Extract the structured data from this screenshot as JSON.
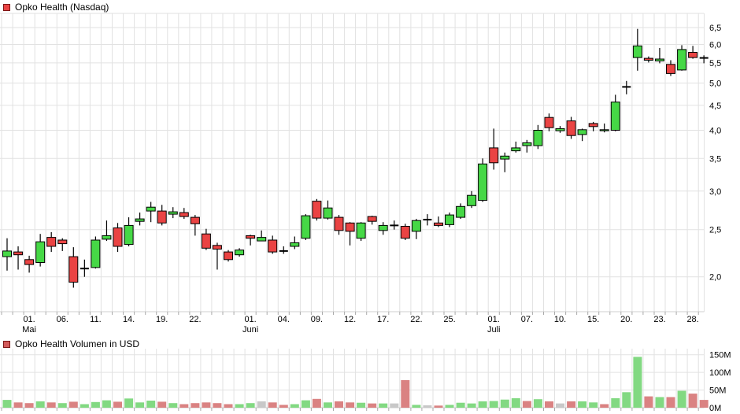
{
  "header": {
    "title": "Opko Health (Nasdaq)"
  },
  "volume_header": {
    "title": "Opko Health Volumen in USD"
  },
  "colors": {
    "candle_up": "#46D846",
    "candle_down": "#EA4343",
    "candle_outline": "#000000",
    "doji": "#000000",
    "volume_up": "#82D982",
    "volume_down": "#DA8282",
    "volume_neutral": "#C8C8C8",
    "grid": "#E2E2E2",
    "axis_line": "#CFCFCF",
    "tick": "#AAAAAA",
    "legend_main_square": "#EA4343",
    "legend_volume_square": "#D25A5A",
    "background": "#FFFFFF"
  },
  "chart_data": {
    "type": "candlestick",
    "title": "Opko Health (Nasdaq)",
    "subtitle_volume": "Opko Health Volumen in USD",
    "y_scale": "logarithmic",
    "grid": true,
    "legend_position": "top-left",
    "price_axis": {
      "side": "right",
      "labels": [
        "6,5",
        "6,0",
        "5,5",
        "5,0",
        "4,5",
        "4,0",
        "3,5",
        "3,0",
        "2,5",
        "2,0"
      ],
      "values": [
        6.5,
        6.0,
        5.5,
        5.0,
        4.5,
        4.0,
        3.5,
        3.0,
        2.5,
        2.0
      ],
      "min_visible": 1.9,
      "max_visible": 6.5
    },
    "volume_axis": {
      "side": "right",
      "labels": [
        "150M",
        "100M",
        "50M",
        "0M"
      ],
      "values": [
        150,
        100,
        50,
        0
      ],
      "unit": "USD"
    },
    "x_axis": {
      "months": [
        "Mai",
        "Juni",
        "Juli"
      ],
      "ticks": [
        {
          "label": "01.",
          "month": "Mai",
          "candle_index": 2
        },
        {
          "label": "06.",
          "month": "",
          "candle_index": 5
        },
        {
          "label": "11.",
          "month": "",
          "candle_index": 8
        },
        {
          "label": "14.",
          "month": "",
          "candle_index": 11
        },
        {
          "label": "19.",
          "month": "",
          "candle_index": 14
        },
        {
          "label": "22.",
          "month": "",
          "candle_index": 17
        },
        {
          "label": "01.",
          "month": "Juni",
          "candle_index": 22
        },
        {
          "label": "04.",
          "month": "",
          "candle_index": 25
        },
        {
          "label": "09.",
          "month": "",
          "candle_index": 28
        },
        {
          "label": "12.",
          "month": "",
          "candle_index": 31
        },
        {
          "label": "17.",
          "month": "",
          "candle_index": 34
        },
        {
          "label": "22.",
          "month": "",
          "candle_index": 37
        },
        {
          "label": "25.",
          "month": "",
          "candle_index": 40
        },
        {
          "label": "01.",
          "month": "Juli",
          "candle_index": 44
        },
        {
          "label": "07.",
          "month": "",
          "candle_index": 47
        },
        {
          "label": "10.",
          "month": "",
          "candle_index": 50
        },
        {
          "label": "15.",
          "month": "",
          "candle_index": 53
        },
        {
          "label": "20.",
          "month": "",
          "candle_index": 56
        },
        {
          "label": "23.",
          "month": "",
          "candle_index": 59
        },
        {
          "label": "28.",
          "month": "",
          "candle_index": 62
        }
      ]
    },
    "candle_fields": [
      "date",
      "open",
      "high",
      "low",
      "close",
      "volume_musd",
      "volume_color"
    ],
    "candles": [
      [
        "29.04.",
        2.2,
        2.4,
        2.06,
        2.26,
        22,
        "up"
      ],
      [
        "30.04.",
        2.25,
        2.31,
        2.07,
        2.22,
        15,
        "down"
      ],
      [
        "01.05.",
        2.17,
        2.21,
        2.04,
        2.12,
        13,
        "down"
      ],
      [
        "04.05.",
        2.14,
        2.45,
        2.1,
        2.36,
        18,
        "up"
      ],
      [
        "05.05.",
        2.41,
        2.47,
        2.25,
        2.31,
        15,
        "down"
      ],
      [
        "06.05.",
        2.38,
        2.4,
        2.26,
        2.34,
        13,
        "up"
      ],
      [
        "07.05.",
        2.2,
        2.3,
        1.9,
        1.95,
        17,
        "down"
      ],
      [
        "08.05.",
        2.08,
        2.17,
        2.0,
        2.09,
        10,
        "up"
      ],
      [
        "11.05.",
        2.09,
        2.42,
        2.08,
        2.38,
        16,
        "up"
      ],
      [
        "12.05.",
        2.39,
        2.61,
        2.37,
        2.43,
        21,
        "up"
      ],
      [
        "13.05.",
        2.52,
        2.58,
        2.25,
        2.31,
        17,
        "down"
      ],
      [
        "14.05.",
        2.33,
        2.65,
        2.31,
        2.55,
        26,
        "up"
      ],
      [
        "15.05.",
        2.6,
        2.71,
        2.55,
        2.63,
        15,
        "up"
      ],
      [
        "18.05.",
        2.73,
        2.85,
        2.59,
        2.78,
        20,
        "up"
      ],
      [
        "19.05.",
        2.73,
        2.81,
        2.55,
        2.58,
        17,
        "down"
      ],
      [
        "20.05.",
        2.69,
        2.78,
        2.64,
        2.72,
        13,
        "up"
      ],
      [
        "21.05.",
        2.71,
        2.77,
        2.63,
        2.66,
        10,
        "down"
      ],
      [
        "22.05.",
        2.65,
        2.68,
        2.43,
        2.57,
        13,
        "down"
      ],
      [
        "26.05.",
        2.45,
        2.51,
        2.27,
        2.29,
        15,
        "down"
      ],
      [
        "27.05.",
        2.32,
        2.35,
        2.07,
        2.28,
        13,
        "down"
      ],
      [
        "28.05.",
        2.25,
        2.27,
        2.15,
        2.17,
        10,
        "down"
      ],
      [
        "29.05.",
        2.22,
        2.29,
        2.2,
        2.27,
        10,
        "up"
      ],
      [
        "01.06.",
        2.43,
        2.44,
        2.32,
        2.4,
        13,
        "up"
      ],
      [
        "02.06.",
        2.37,
        2.49,
        2.37,
        2.41,
        18,
        "neutral"
      ],
      [
        "03.06.",
        2.38,
        2.43,
        2.23,
        2.25,
        15,
        "down"
      ],
      [
        "04.06.",
        2.26,
        2.31,
        2.23,
        2.26,
        8,
        "down"
      ],
      [
        "05.06.",
        2.31,
        2.42,
        2.28,
        2.35,
        10,
        "up"
      ],
      [
        "08.06.",
        2.4,
        2.69,
        2.38,
        2.67,
        21,
        "up"
      ],
      [
        "09.06.",
        2.86,
        2.89,
        2.61,
        2.64,
        25,
        "down"
      ],
      [
        "10.06.",
        2.64,
        2.87,
        2.62,
        2.77,
        15,
        "up"
      ],
      [
        "11.06.",
        2.65,
        2.68,
        2.44,
        2.49,
        18,
        "down"
      ],
      [
        "12.06.",
        2.58,
        2.59,
        2.32,
        2.48,
        15,
        "down"
      ],
      [
        "15.06.",
        2.4,
        2.59,
        2.37,
        2.58,
        14,
        "up"
      ],
      [
        "16.06.",
        2.66,
        2.67,
        2.56,
        2.6,
        12,
        "down"
      ],
      [
        "17.06.",
        2.49,
        2.59,
        2.44,
        2.55,
        12,
        "up"
      ],
      [
        "18.06.",
        2.55,
        2.61,
        2.5,
        2.54,
        12,
        "neutral"
      ],
      [
        "19.06.",
        2.54,
        2.57,
        2.38,
        2.4,
        78,
        "down"
      ],
      [
        "22.06.",
        2.48,
        2.63,
        2.39,
        2.61,
        8,
        "up"
      ],
      [
        "23.06.",
        2.62,
        2.69,
        2.55,
        2.62,
        7,
        "neutral"
      ],
      [
        "24.06.",
        2.58,
        2.66,
        2.53,
        2.55,
        6,
        "down"
      ],
      [
        "25.06.",
        2.56,
        2.71,
        2.53,
        2.68,
        8,
        "up"
      ],
      [
        "26.06.",
        2.65,
        2.83,
        2.63,
        2.79,
        14,
        "up"
      ],
      [
        "29.06.",
        2.8,
        3.0,
        2.77,
        2.94,
        12,
        "up"
      ],
      [
        "30.06.",
        2.87,
        3.5,
        2.85,
        3.41,
        18,
        "up"
      ],
      [
        "01.07.",
        3.68,
        4.03,
        3.32,
        3.43,
        19,
        "up"
      ],
      [
        "02.07.",
        3.49,
        3.6,
        3.28,
        3.54,
        23,
        "up"
      ],
      [
        "06.07.",
        3.63,
        3.79,
        3.6,
        3.68,
        27,
        "up"
      ],
      [
        "07.07.",
        3.72,
        3.82,
        3.6,
        3.77,
        19,
        "down"
      ],
      [
        "08.07.",
        3.72,
        4.1,
        3.66,
        4.0,
        24,
        "up"
      ],
      [
        "09.07.",
        4.25,
        4.33,
        3.98,
        4.05,
        18,
        "down"
      ],
      [
        "10.07.",
        3.99,
        4.08,
        3.95,
        4.03,
        12,
        "neutral"
      ],
      [
        "13.07.",
        4.18,
        4.26,
        3.84,
        3.9,
        18,
        "down"
      ],
      [
        "14.07.",
        3.92,
        4.03,
        3.8,
        4.01,
        18,
        "up"
      ],
      [
        "15.07.",
        4.13,
        4.16,
        3.98,
        4.07,
        15,
        "up"
      ],
      [
        "16.07.",
        3.99,
        4.13,
        3.96,
        4.01,
        10,
        "down"
      ],
      [
        "17.07.",
        4.0,
        4.73,
        3.98,
        4.57,
        27,
        "up"
      ],
      [
        "20.07.",
        4.91,
        5.05,
        4.74,
        4.91,
        44,
        "up"
      ],
      [
        "21.07.",
        5.64,
        6.46,
        5.3,
        5.96,
        144,
        "up"
      ],
      [
        "22.07.",
        5.62,
        5.67,
        5.51,
        5.57,
        32,
        "down"
      ],
      [
        "23.07.",
        5.55,
        5.9,
        5.49,
        5.6,
        30,
        "up"
      ],
      [
        "24.07.",
        5.46,
        5.57,
        5.17,
        5.23,
        30,
        "down"
      ],
      [
        "27.07.",
        5.32,
        5.98,
        5.3,
        5.86,
        48,
        "up"
      ],
      [
        "28.07.",
        5.78,
        5.96,
        5.61,
        5.64,
        40,
        "down"
      ],
      [
        "29.07.",
        5.63,
        5.7,
        5.49,
        5.63,
        22,
        "down"
      ]
    ]
  }
}
